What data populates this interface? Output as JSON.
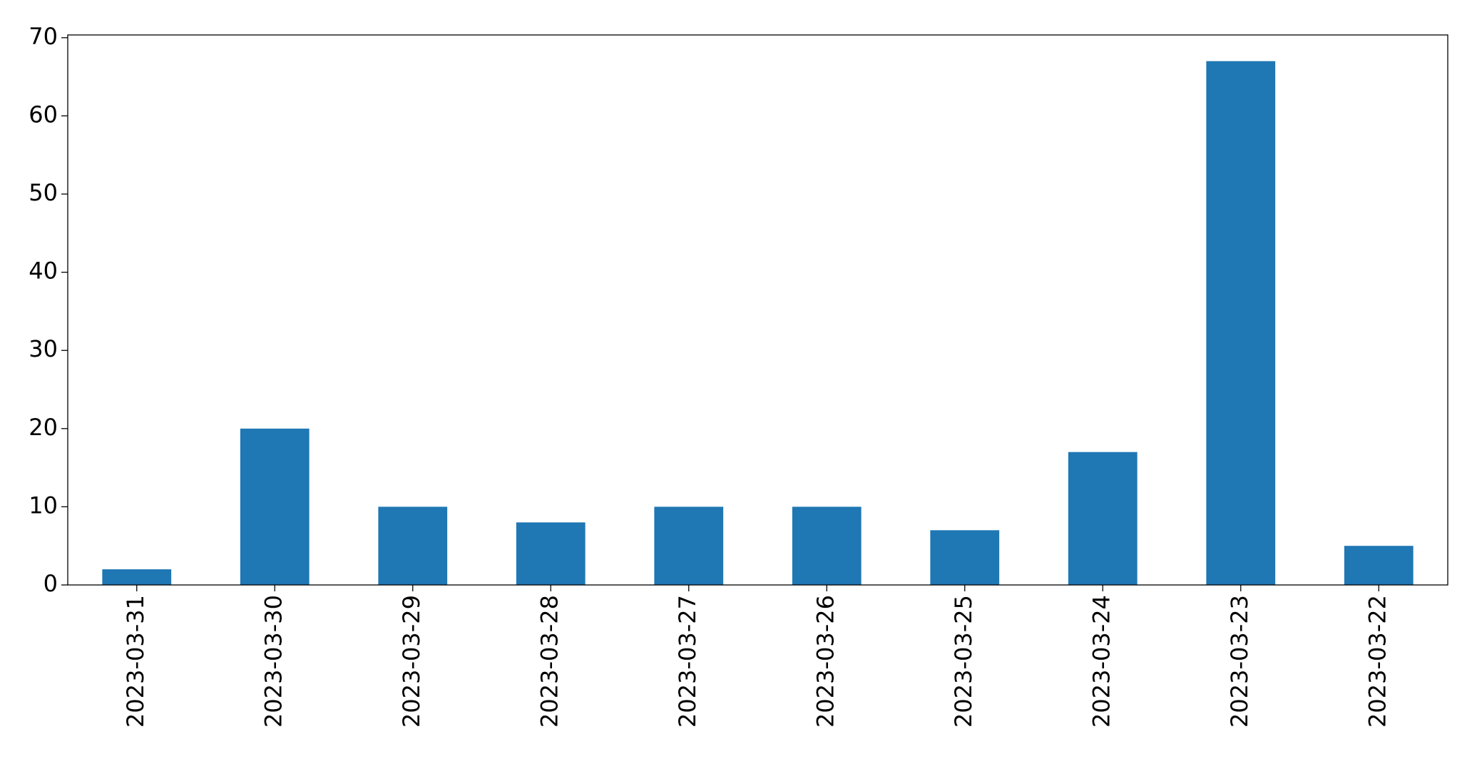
{
  "chart_data": {
    "type": "bar",
    "categories": [
      "2023-03-31",
      "2023-03-30",
      "2023-03-29",
      "2023-03-28",
      "2023-03-27",
      "2023-03-26",
      "2023-03-25",
      "2023-03-24",
      "2023-03-23",
      "2023-03-22"
    ],
    "values": [
      2,
      20,
      10,
      8,
      10,
      10,
      7,
      17,
      67,
      5
    ],
    "color": "#1f77b4",
    "ylim": [
      0,
      70.35
    ],
    "yticks": [
      0,
      10,
      20,
      30,
      40,
      50,
      60,
      70
    ],
    "grid": false
  }
}
